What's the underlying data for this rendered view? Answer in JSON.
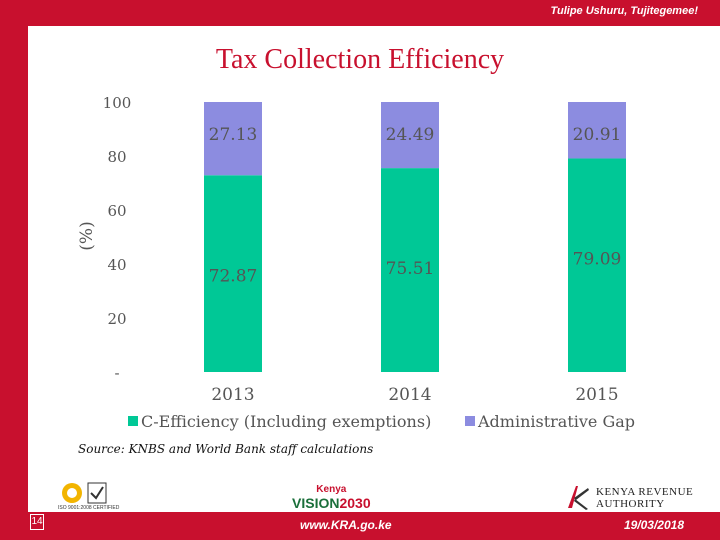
{
  "header": {
    "tagline": "Tulipe Ushuru, Tujitegemee!"
  },
  "title": "Tax Collection Efficiency",
  "source": "Source: KNBS and World Bank staff calculations",
  "footer": {
    "slide_number": "14",
    "url": "www.KRA.go.ke",
    "date": "19/03/2018",
    "vision_top": "Kenya",
    "vision_word": "VISION",
    "vision_year": "2030",
    "kra_line1": "KENYA REVENUE",
    "kra_line2": "AUTHORITY",
    "iso_caption": "ISO 9001:2008 CERTIFIED"
  },
  "colors": {
    "brand": "#c8102e",
    "c_efficiency": "#00c896",
    "admin_gap": "#8c8ce0"
  },
  "chart_data": {
    "type": "bar",
    "stacked": true,
    "categories": [
      "2013",
      "2014",
      "2015"
    ],
    "series": [
      {
        "name": "C-Efficiency (Including exemptions)",
        "values": [
          72.87,
          75.51,
          79.09
        ],
        "labels": [
          "72.87",
          "75.51",
          "79.09"
        ]
      },
      {
        "name": "Administrative Gap",
        "values": [
          27.13,
          24.49,
          20.91
        ],
        "labels": [
          "27.13",
          "24.49",
          "20.91"
        ]
      }
    ],
    "ylabel": "(%)",
    "ylim": [
      0,
      100
    ],
    "yticks": [
      "-",
      "20",
      "40",
      "60",
      "80",
      "100"
    ],
    "legend_position": "bottom",
    "grid": false
  }
}
